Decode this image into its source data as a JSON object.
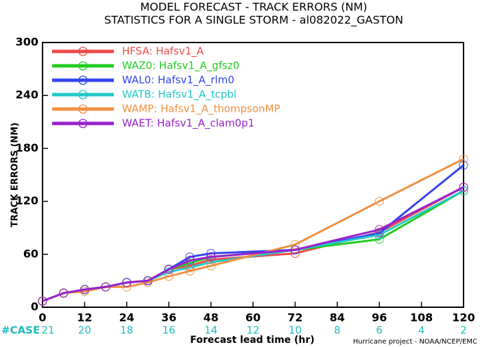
{
  "chart_data": {
    "type": "line",
    "title": "MODEL FORECAST - TRACK ERRORS (NM)",
    "subtitle": "STATISTICS FOR A SINGLE STORM - al082022_GASTON",
    "x_label": "Forecast lead time (hr)",
    "y_label": "TRACK ERRORS (NM)",
    "footnote": "Hurricane project - NOAA/NCEP/EMC",
    "x": [
      0,
      6,
      12,
      18,
      24,
      30,
      36,
      42,
      48,
      72,
      96,
      120
    ],
    "xlim": [
      0,
      120
    ],
    "xticks": [
      0,
      12,
      24,
      36,
      48,
      60,
      72,
      84,
      96,
      108,
      120
    ],
    "ylim": [
      0,
      300
    ],
    "yticks": [
      0,
      60,
      120,
      180,
      240,
      300
    ],
    "case_label": "#CASE",
    "cases": [
      21,
      20,
      18,
      16,
      14,
      12,
      10,
      8,
      6,
      4,
      2
    ],
    "legend": "upper left",
    "series": [
      {
        "name": "HFSA: Hafsv1_A",
        "color": "#f04848",
        "values": [
          7,
          16,
          20,
          23,
          28,
          30,
          43,
          47,
          54,
          61,
          85,
          136
        ]
      },
      {
        "name": "WAZ0: Hafsv1_A_gfsz0",
        "color": "#22cc22",
        "values": [
          7,
          16,
          20,
          23,
          28,
          30,
          43,
          50,
          57,
          65,
          77,
          132
        ]
      },
      {
        "name": "WAL0: Hafsv1_A_rlm0",
        "color": "#3344ee",
        "values": [
          7,
          16,
          20,
          23,
          28,
          30,
          43,
          57,
          61,
          65,
          84,
          161
        ]
      },
      {
        "name": "WATB: Hafsv1_A_tcpbl",
        "color": "#22c8c8",
        "values": [
          7,
          16,
          20,
          23,
          28,
          30,
          40,
          45,
          51,
          65,
          82,
          132
        ]
      },
      {
        "name": "WAMP: Hafsv1_A_thompsonMP",
        "color": "#f09040",
        "values": [
          7,
          16,
          18,
          23,
          23,
          28,
          35,
          41,
          47,
          71,
          120,
          168
        ]
      },
      {
        "name": "WAET: Hafsv1_A_clam0p1",
        "color": "#9922cc",
        "values": [
          7,
          16,
          20,
          23,
          28,
          30,
          43,
          53,
          57,
          65,
          88,
          136
        ]
      }
    ]
  }
}
